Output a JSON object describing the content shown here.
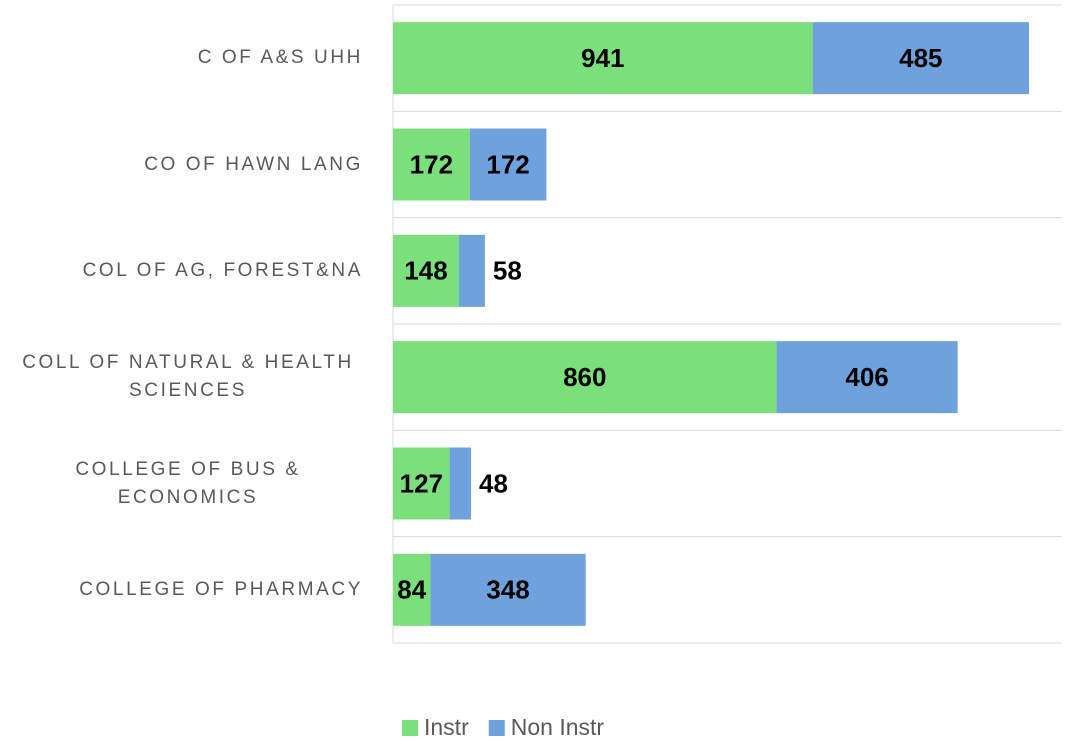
{
  "chart_data": {
    "type": "stacked-bar-horizontal",
    "categories": [
      "C OF A&S UHH",
      "CO OF HAWN LANG",
      "COL OF AG, FOREST&NA",
      "COLL OF NATURAL & HEALTH SCIENCES",
      "COLLEGE OF BUS & ECONOMICS",
      "COLLEGE OF PHARMACY"
    ],
    "series": [
      {
        "name": "Instr",
        "color": "#7bdf7b",
        "values": [
          941,
          172,
          148,
          860,
          127,
          84
        ]
      },
      {
        "name": "Non Instr",
        "color": "#6fa2dc",
        "values": [
          485,
          172,
          58,
          406,
          48,
          348
        ]
      }
    ],
    "xlim": [
      0,
      1500
    ],
    "grid": true,
    "legend": "bottom"
  }
}
